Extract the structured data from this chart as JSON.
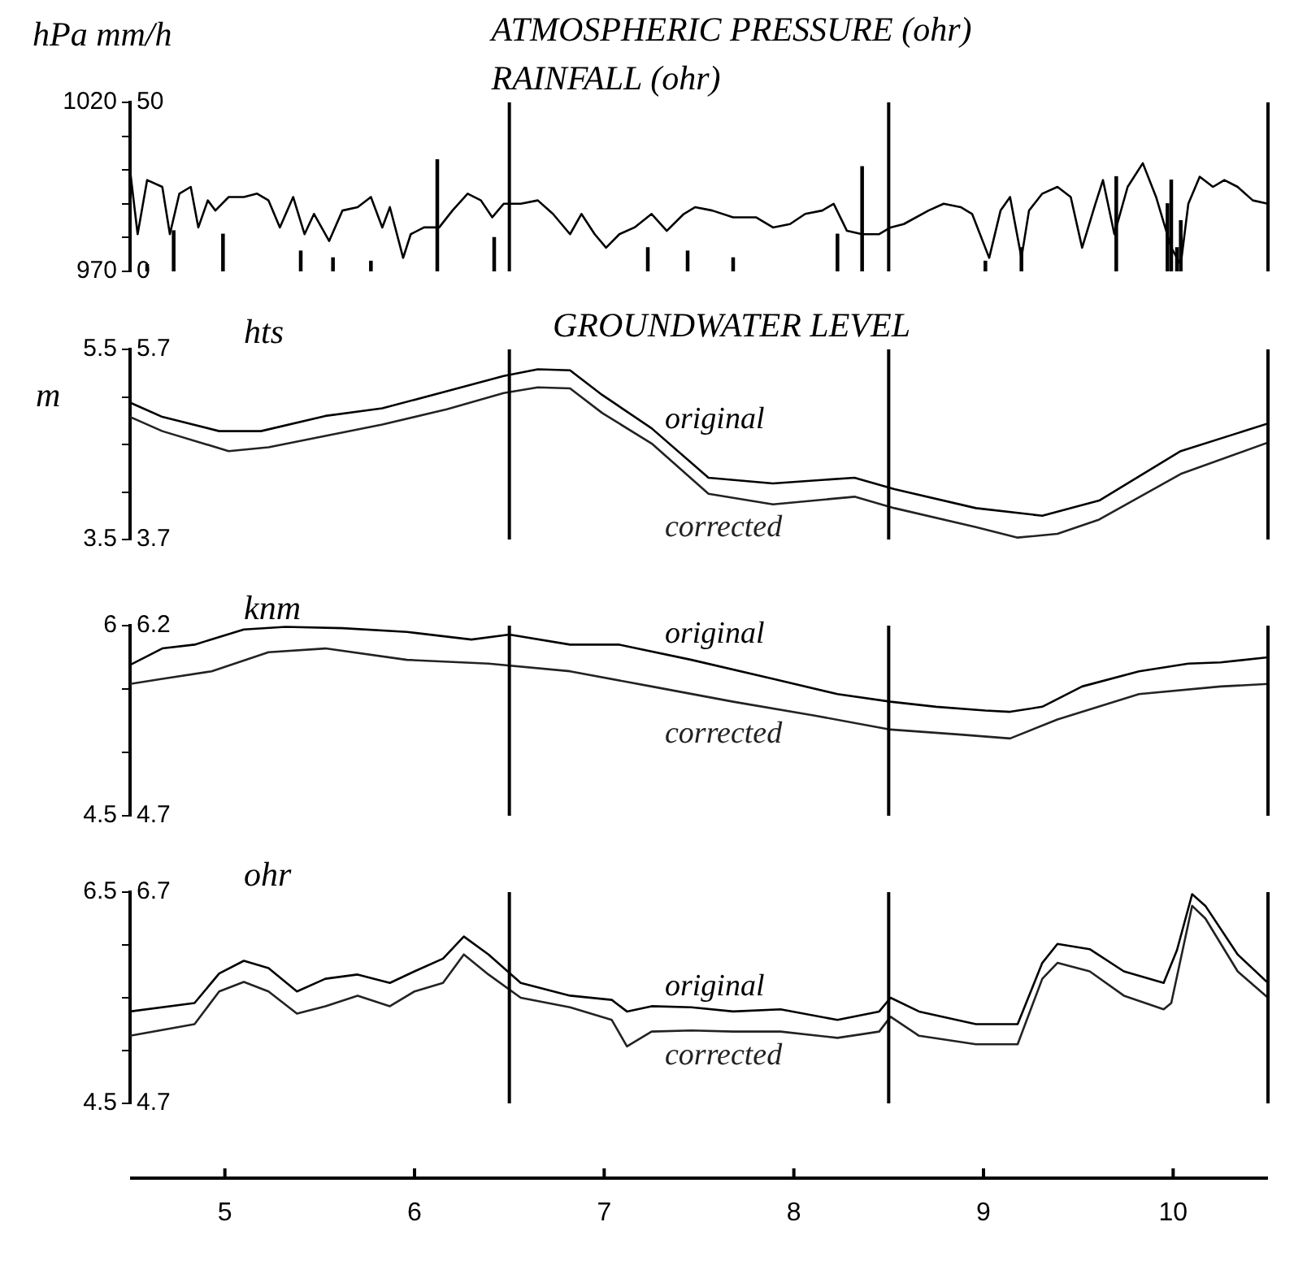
{
  "chart_data": [
    {
      "type": "line",
      "title": "ATMOSPHERIC PRESSURE (ohr)",
      "subtitle": "RAINFALL (ohr)",
      "ylabel": "hPa",
      "y2label": "mm/h",
      "xlim": [
        4.5,
        10.5
      ],
      "ylim": [
        970,
        1020
      ],
      "yticks": [
        970,
        {
          "value": 980,
          "label": null
        },
        {
          "value": 990,
          "label": null
        },
        {
          "value": 1000,
          "label": null
        },
        {
          "value": 1010,
          "label": null
        },
        1020
      ],
      "y2lim": [
        0,
        50
      ],
      "y2ticks": [
        0,
        50
      ],
      "ref_lines": [
        {
          "axis": "x",
          "value": 6.5
        },
        {
          "axis": "x",
          "value": 8.5
        }
      ],
      "grid": false,
      "legend": false,
      "tick_labels": "y",
      "marker": "none",
      "line_style": "solid",
      "series": [
        {
          "type": "line",
          "color": "#000000",
          "x": [
            4.5,
            4.54,
            4.59,
            4.67,
            4.71,
            4.76,
            4.82,
            4.86,
            4.91,
            4.95,
            5.02,
            5.1,
            5.17,
            5.23,
            5.29,
            5.36,
            5.42,
            5.47,
            5.55,
            5.62,
            5.7,
            5.77,
            5.83,
            5.87,
            5.94,
            5.98,
            6.05,
            6.13,
            6.2,
            6.28,
            6.35,
            6.41,
            6.47,
            6.56,
            6.65,
            6.73,
            6.82,
            6.88,
            6.95,
            7.01,
            7.08,
            7.16,
            7.25,
            7.33,
            7.42,
            7.48,
            7.57,
            7.68,
            7.8,
            7.89,
            7.98,
            8.06,
            8.15,
            8.21,
            8.28,
            8.36,
            8.45,
            8.51,
            8.58,
            8.71,
            8.79,
            8.88,
            8.94,
            9.03,
            9.09,
            9.14,
            9.2,
            9.24,
            9.31,
            9.39,
            9.46,
            9.52,
            9.59,
            9.63,
            9.69,
            9.76,
            9.84,
            9.91,
            9.99,
            10.04,
            10.08,
            10.14,
            10.21,
            10.27,
            10.34,
            10.42,
            10.5
          ],
          "values": [
            1000,
            981,
            997,
            995,
            981,
            993,
            995,
            983,
            991,
            988,
            992,
            992,
            993,
            991,
            983,
            992,
            981,
            987,
            979,
            988,
            989,
            992,
            983,
            989,
            974,
            981,
            983,
            983,
            988,
            993,
            991,
            986,
            990,
            990,
            991,
            987,
            981,
            987,
            981,
            977,
            981,
            983,
            987,
            982,
            987,
            989,
            988,
            986,
            986,
            983,
            984,
            987,
            988,
            990,
            982,
            981,
            981,
            983,
            984,
            988,
            990,
            989,
            987,
            974,
            988,
            992,
            974,
            988,
            993,
            995,
            992,
            977,
            990,
            997,
            981,
            995,
            1002,
            992,
            977,
            972,
            990,
            998,
            995,
            997,
            995,
            991,
            990
          ]
        },
        {
          "type": "bar",
          "axis": "y2",
          "color": "#000000",
          "x": [
            4.59,
            4.73,
            4.99,
            5.4,
            5.57,
            5.77,
            6.12,
            6.42,
            7.23,
            7.44,
            7.68,
            8.23,
            8.36,
            9.01,
            9.2,
            9.7,
            9.97,
            9.99,
            10.02,
            10.04
          ],
          "values": [
            2,
            12,
            11,
            6,
            4,
            3,
            33,
            10,
            7,
            6,
            4,
            11,
            31,
            3,
            7,
            28,
            20,
            27,
            7,
            15
          ]
        }
      ]
    },
    {
      "type": "line",
      "title": "GROUNDWATER LEVEL",
      "ylabel": "m",
      "annotations": [
        "hts"
      ],
      "xlim": [
        4.5,
        10.5
      ],
      "ylim": [
        3.5,
        5.5
      ],
      "yticks": [
        3.5,
        {
          "value": 4,
          "label": null
        },
        {
          "value": 4.5,
          "label": null
        },
        {
          "value": 5,
          "label": null
        },
        5.5
      ],
      "y2lim": [
        3.7,
        5.7
      ],
      "y2ticks": [
        3.7,
        5.7
      ],
      "ref_lines": [
        {
          "axis": "x",
          "value": 6.5
        },
        {
          "axis": "x",
          "value": 8.5
        }
      ],
      "grid": false,
      "legend": false,
      "tick_labels": "y",
      "marker": "none",
      "line_style": "solid",
      "series": [
        {
          "name": "original",
          "color": "#000000",
          "x": [
            4.5,
            4.67,
            4.97,
            5.19,
            5.53,
            5.83,
            6.17,
            6.47,
            6.65,
            6.82,
            6.99,
            7.25,
            7.55,
            7.89,
            8.32,
            8.53,
            8.96,
            9.31,
            9.61,
            10.04,
            10.5
          ],
          "values": [
            4.94,
            4.79,
            4.64,
            4.64,
            4.8,
            4.88,
            5.06,
            5.22,
            5.29,
            5.28,
            5.02,
            4.67,
            4.15,
            4.09,
            4.15,
            4.03,
            3.83,
            3.75,
            3.91,
            4.43,
            4.72
          ]
        },
        {
          "name": "corrected",
          "color": "#222222",
          "x": [
            4.5,
            4.67,
            5.02,
            5.23,
            5.53,
            5.83,
            6.17,
            6.47,
            6.65,
            6.82,
            6.99,
            7.25,
            7.55,
            7.89,
            8.32,
            8.53,
            8.96,
            9.18,
            9.39,
            9.61,
            10.04,
            10.5
          ],
          "values": [
            4.79,
            4.64,
            4.43,
            4.47,
            4.59,
            4.71,
            4.87,
            5.04,
            5.1,
            5.09,
            4.83,
            4.51,
            3.98,
            3.87,
            3.95,
            3.83,
            3.63,
            3.52,
            3.56,
            3.71,
            4.19,
            4.52
          ]
        }
      ]
    },
    {
      "type": "line",
      "annotations": [
        "knm"
      ],
      "xlim": [
        4.5,
        10.5
      ],
      "ylim": [
        4.5,
        6
      ],
      "yticks": [
        4.5,
        {
          "value": 5,
          "label": null
        },
        {
          "value": 5.5,
          "label": null
        },
        6
      ],
      "y2lim": [
        4.7,
        6.2
      ],
      "y2ticks": [
        4.7,
        6.2
      ],
      "ref_lines": [
        {
          "axis": "x",
          "value": 6.5
        },
        {
          "axis": "x",
          "value": 8.5
        }
      ],
      "grid": false,
      "legend": false,
      "tick_labels": "y",
      "marker": "none",
      "line_style": "solid",
      "series": [
        {
          "name": "original",
          "color": "#000000",
          "x": [
            4.5,
            4.67,
            4.84,
            5.1,
            5.32,
            5.62,
            5.96,
            6.3,
            6.5,
            6.82,
            7.08,
            7.46,
            7.89,
            8.23,
            8.51,
            8.75,
            9.01,
            9.14,
            9.31,
            9.52,
            9.82,
            10.08,
            10.25,
            10.5
          ],
          "values": [
            5.69,
            5.82,
            5.85,
            5.97,
            5.99,
            5.98,
            5.95,
            5.89,
            5.93,
            5.85,
            5.85,
            5.73,
            5.58,
            5.46,
            5.4,
            5.36,
            5.33,
            5.32,
            5.36,
            5.52,
            5.64,
            5.7,
            5.71,
            5.75
          ]
        },
        {
          "name": "corrected",
          "color": "#222222",
          "x": [
            4.5,
            4.67,
            4.93,
            5.23,
            5.53,
            5.96,
            6.39,
            6.82,
            7.25,
            7.68,
            8.11,
            8.51,
            8.88,
            9.14,
            9.39,
            9.82,
            10.25,
            10.5
          ],
          "values": [
            5.54,
            5.58,
            5.64,
            5.79,
            5.82,
            5.73,
            5.7,
            5.64,
            5.52,
            5.4,
            5.29,
            5.18,
            5.14,
            5.11,
            5.26,
            5.46,
            5.52,
            5.54
          ]
        }
      ]
    },
    {
      "type": "line",
      "annotations": [
        "ohr"
      ],
      "xlim": [
        4.5,
        10.5
      ],
      "xticks": [
        5,
        6,
        7,
        8,
        9,
        10
      ],
      "ylim": [
        4.5,
        6.5
      ],
      "yticks": [
        4.5,
        {
          "value": 5,
          "label": null
        },
        {
          "value": 5.5,
          "label": null
        },
        {
          "value": 6,
          "label": null
        },
        6.5
      ],
      "y2lim": [
        4.7,
        6.7
      ],
      "y2ticks": [
        4.7,
        6.7
      ],
      "ref_lines": [
        {
          "axis": "x",
          "value": 6.5
        },
        {
          "axis": "x",
          "value": 8.5
        }
      ],
      "grid": false,
      "legend": false,
      "marker": "none",
      "line_style": "solid",
      "series": [
        {
          "name": "original",
          "color": "#000000",
          "x": [
            4.5,
            4.84,
            4.97,
            5.1,
            5.23,
            5.38,
            5.53,
            5.7,
            5.87,
            6.0,
            6.15,
            6.26,
            6.39,
            6.56,
            6.82,
            7.04,
            7.12,
            7.25,
            7.46,
            7.68,
            7.93,
            8.23,
            8.45,
            8.51,
            8.66,
            8.96,
            9.18,
            9.31,
            9.39,
            9.56,
            9.74,
            9.95,
            10.02,
            10.1,
            10.17,
            10.34,
            10.5
          ],
          "values": [
            5.37,
            5.45,
            5.73,
            5.85,
            5.78,
            5.56,
            5.68,
            5.72,
            5.64,
            5.75,
            5.87,
            6.08,
            5.91,
            5.64,
            5.52,
            5.48,
            5.37,
            5.42,
            5.41,
            5.37,
            5.39,
            5.29,
            5.37,
            5.5,
            5.37,
            5.25,
            5.25,
            5.83,
            6.01,
            5.96,
            5.75,
            5.64,
            5.95,
            6.48,
            6.37,
            5.91,
            5.64
          ]
        },
        {
          "name": "corrected",
          "color": "#222222",
          "x": [
            4.5,
            4.84,
            4.97,
            5.1,
            5.23,
            5.38,
            5.53,
            5.7,
            5.87,
            6.0,
            6.15,
            6.26,
            6.39,
            6.56,
            6.82,
            7.04,
            7.12,
            7.25,
            7.46,
            7.68,
            7.93,
            8.23,
            8.45,
            8.51,
            8.66,
            8.96,
            9.18,
            9.31,
            9.39,
            9.56,
            9.74,
            9.95,
            9.99,
            10.1,
            10.17,
            10.34,
            10.5
          ],
          "values": [
            5.14,
            5.25,
            5.56,
            5.65,
            5.56,
            5.35,
            5.42,
            5.52,
            5.42,
            5.56,
            5.64,
            5.91,
            5.72,
            5.5,
            5.41,
            5.29,
            5.04,
            5.18,
            5.19,
            5.18,
            5.18,
            5.12,
            5.18,
            5.32,
            5.14,
            5.06,
            5.06,
            5.68,
            5.83,
            5.75,
            5.52,
            5.39,
            5.45,
            6.37,
            6.25,
            5.75,
            5.5
          ]
        }
      ]
    }
  ]
}
